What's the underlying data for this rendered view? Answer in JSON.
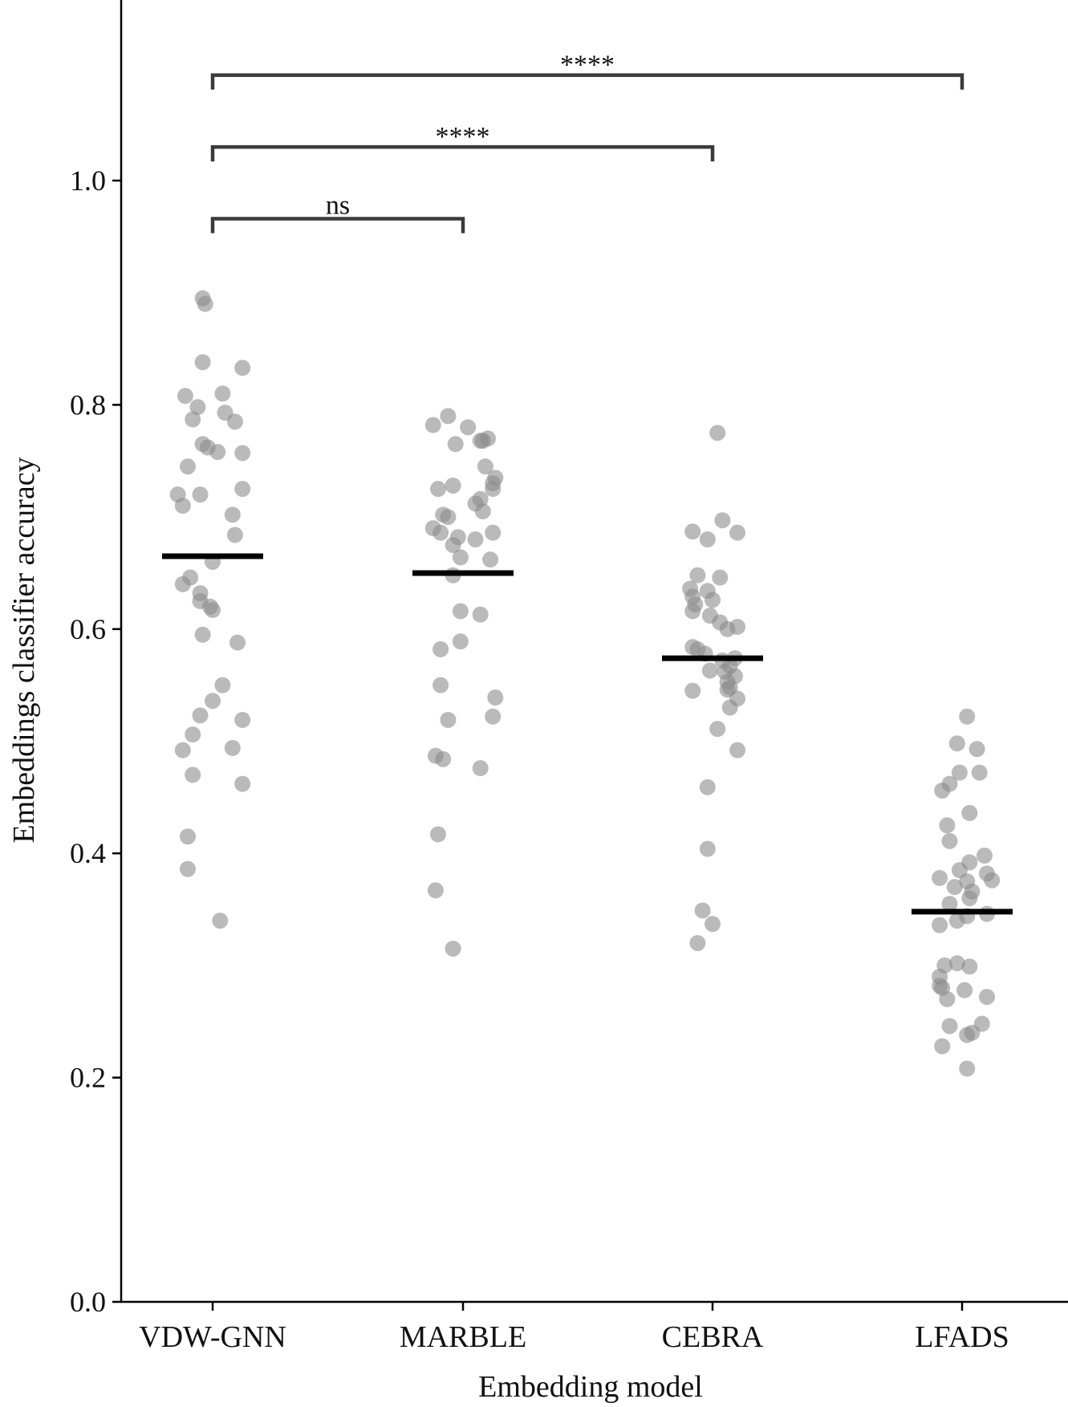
{
  "chart_data": {
    "type": "scatter",
    "xlabel": "Embedding model",
    "ylabel": "Embeddings classifier accuracy",
    "ylim": [
      0.0,
      1.16
    ],
    "yticks": [
      "0.0",
      "0.2",
      "0.4",
      "0.6",
      "0.8",
      "1.0"
    ],
    "ytick_values": [
      0.0,
      0.2,
      0.4,
      0.6,
      0.8,
      1.0
    ],
    "categories": [
      "VDW-GNN",
      "MARBLE",
      "CEBRA",
      "LFADS"
    ],
    "point_color": "#8c8c8c",
    "mean_color": "#000000",
    "series": [
      {
        "category": "VDW-GNN",
        "mean": 0.665,
        "points": [
          0.895,
          0.89,
          0.838,
          0.833,
          0.81,
          0.808,
          0.798,
          0.793,
          0.787,
          0.785,
          0.765,
          0.762,
          0.758,
          0.757,
          0.745,
          0.725,
          0.72,
          0.72,
          0.71,
          0.702,
          0.684,
          0.66,
          0.646,
          0.64,
          0.632,
          0.625,
          0.62,
          0.617,
          0.595,
          0.588,
          0.55,
          0.536,
          0.523,
          0.519,
          0.506,
          0.494,
          0.492,
          0.47,
          0.462,
          0.415,
          0.386,
          0.34
        ],
        "offsets": [
          -0.04,
          -0.03,
          -0.04,
          0.12,
          0.04,
          -0.11,
          -0.06,
          0.05,
          -0.08,
          0.09,
          -0.04,
          -0.02,
          0.02,
          0.12,
          -0.1,
          0.12,
          -0.14,
          -0.05,
          -0.12,
          0.08,
          0.09,
          0.0,
          -0.09,
          -0.12,
          -0.05,
          -0.05,
          -0.01,
          0.0,
          -0.04,
          0.1,
          0.04,
          0.0,
          -0.05,
          0.12,
          -0.08,
          0.08,
          -0.12,
          -0.08,
          0.12,
          -0.1,
          -0.1,
          0.03
        ]
      },
      {
        "category": "MARBLE",
        "mean": 0.65,
        "points": [
          0.79,
          0.782,
          0.78,
          0.77,
          0.768,
          0.768,
          0.765,
          0.745,
          0.735,
          0.73,
          0.728,
          0.725,
          0.725,
          0.716,
          0.712,
          0.705,
          0.702,
          0.7,
          0.69,
          0.686,
          0.686,
          0.682,
          0.68,
          0.675,
          0.664,
          0.662,
          0.648,
          0.616,
          0.613,
          0.589,
          0.582,
          0.55,
          0.539,
          0.522,
          0.519,
          0.487,
          0.484,
          0.476,
          0.417,
          0.367,
          0.315
        ],
        "offsets": [
          -0.06,
          -0.12,
          0.02,
          0.1,
          0.08,
          0.07,
          -0.03,
          0.09,
          0.13,
          0.12,
          -0.04,
          0.12,
          -0.1,
          0.07,
          0.05,
          0.08,
          -0.08,
          -0.06,
          -0.12,
          -0.09,
          0.12,
          -0.02,
          0.05,
          -0.04,
          -0.01,
          0.11,
          -0.04,
          -0.01,
          0.07,
          -0.01,
          -0.09,
          -0.09,
          0.13,
          0.12,
          -0.06,
          -0.11,
          -0.08,
          0.07,
          -0.1,
          -0.11,
          -0.04
        ]
      },
      {
        "category": "CEBRA",
        "mean": 0.574,
        "points": [
          0.775,
          0.697,
          0.687,
          0.686,
          0.68,
          0.648,
          0.646,
          0.636,
          0.634,
          0.629,
          0.626,
          0.622,
          0.616,
          0.612,
          0.606,
          0.602,
          0.6,
          0.584,
          0.582,
          0.578,
          0.574,
          0.572,
          0.567,
          0.563,
          0.562,
          0.558,
          0.553,
          0.548,
          0.546,
          0.545,
          0.538,
          0.53,
          0.511,
          0.492,
          0.459,
          0.404,
          0.349,
          0.337,
          0.32
        ],
        "offsets": [
          0.02,
          0.04,
          -0.08,
          0.1,
          -0.02,
          -0.06,
          0.03,
          -0.09,
          -0.02,
          -0.08,
          0.0,
          -0.07,
          -0.08,
          -0.01,
          0.03,
          0.1,
          0.06,
          -0.08,
          -0.06,
          -0.03,
          0.09,
          0.04,
          0.07,
          -0.01,
          0.05,
          0.09,
          0.06,
          0.07,
          0.06,
          -0.08,
          0.1,
          0.07,
          0.02,
          0.1,
          -0.02,
          -0.02,
          -0.04,
          0.0,
          -0.06
        ]
      },
      {
        "category": "LFADS",
        "mean": 0.348,
        "points": [
          0.522,
          0.498,
          0.493,
          0.472,
          0.472,
          0.462,
          0.456,
          0.436,
          0.425,
          0.411,
          0.398,
          0.392,
          0.385,
          0.382,
          0.378,
          0.376,
          0.375,
          0.37,
          0.366,
          0.36,
          0.355,
          0.346,
          0.344,
          0.34,
          0.336,
          0.302,
          0.3,
          0.299,
          0.29,
          0.282,
          0.28,
          0.278,
          0.272,
          0.27,
          0.248,
          0.246,
          0.24,
          0.238,
          0.228,
          0.208
        ],
        "offsets": [
          0.02,
          -0.02,
          0.06,
          -0.01,
          0.07,
          -0.05,
          -0.08,
          0.03,
          -0.06,
          -0.05,
          0.09,
          0.03,
          -0.01,
          0.1,
          -0.09,
          0.12,
          0.02,
          -0.03,
          0.04,
          0.03,
          -0.05,
          0.1,
          0.02,
          -0.02,
          -0.09,
          -0.02,
          -0.07,
          0.03,
          -0.09,
          -0.09,
          -0.08,
          0.01,
          0.1,
          -0.06,
          0.08,
          -0.05,
          0.04,
          0.02,
          -0.08,
          0.02
        ]
      }
    ],
    "significance": [
      {
        "from": "VDW-GNN",
        "to": "MARBLE",
        "y": 0.966,
        "label": "ns"
      },
      {
        "from": "VDW-GNN",
        "to": "CEBRA",
        "y": 1.03,
        "label": "****"
      },
      {
        "from": "VDW-GNN",
        "to": "LFADS",
        "y": 1.094,
        "label": "****"
      }
    ]
  }
}
